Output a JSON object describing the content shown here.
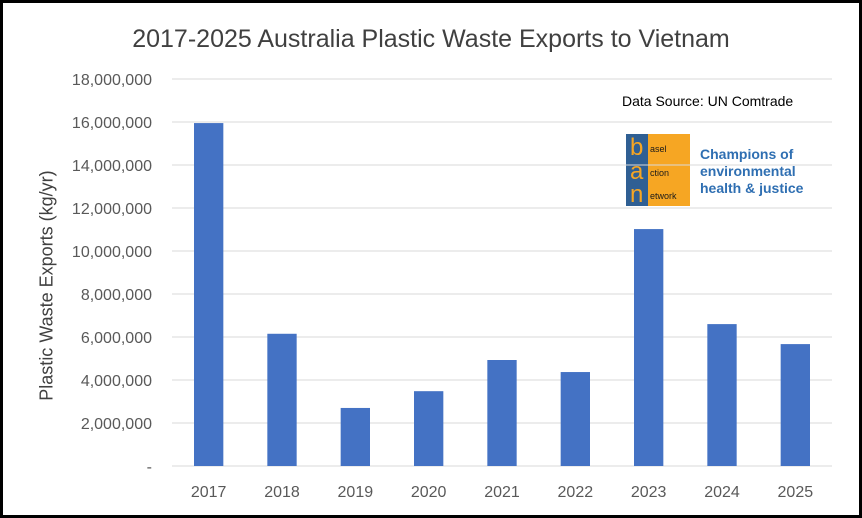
{
  "chart_data": {
    "type": "bar",
    "title": "2017-2025 Australia Plastic Waste Exports to Vietnam",
    "ylabel": "Plastic Waste Exports (kg/yr)",
    "xlabel": "",
    "categories": [
      "2017",
      "2018",
      "2019",
      "2020",
      "2021",
      "2022",
      "2023",
      "2024",
      "2025"
    ],
    "values": [
      15950000,
      6150000,
      2700000,
      3480000,
      4930000,
      4370000,
      11020000,
      6600000,
      5670000
    ],
    "ylim": [
      0,
      18000000
    ],
    "yticks": [
      0,
      2000000,
      4000000,
      6000000,
      8000000,
      10000000,
      12000000,
      14000000,
      16000000,
      18000000
    ],
    "ytick_labels": [
      "-",
      "2,000,000",
      "4,000,000",
      "6,000,000",
      "8,000,000",
      "10,000,000",
      "12,000,000",
      "14,000,000",
      "16,000,000",
      "18,000,000"
    ],
    "grid": true,
    "bar_color": "#4472c4",
    "grid_color": "#d9d9d9"
  },
  "annotation": {
    "source": "Data Source: UN Comtrade"
  },
  "logo": {
    "letters": [
      "b",
      "a",
      "n"
    ],
    "words": [
      "asel",
      "ction",
      "etwork"
    ],
    "tagline": [
      "Champions of",
      "environmental",
      "health & justice"
    ],
    "left_color": "#2f5f93",
    "right_color": "#f6a623"
  }
}
